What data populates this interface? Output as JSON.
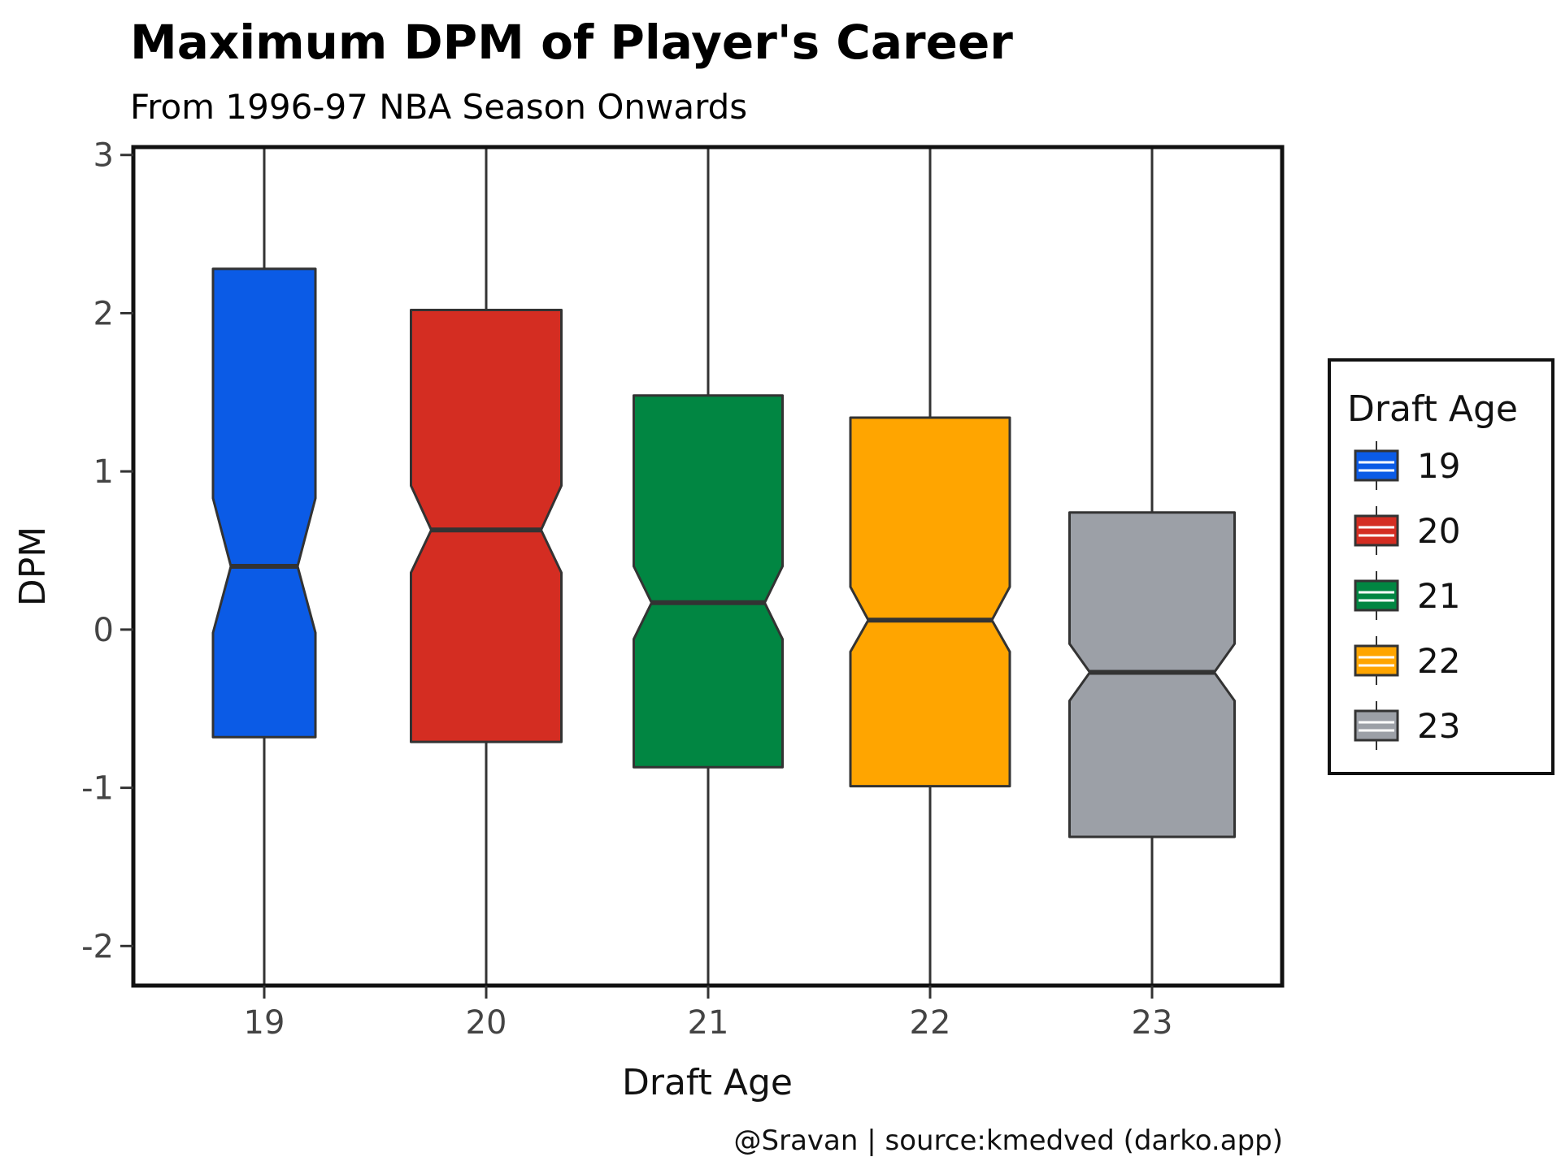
{
  "chart_data": {
    "type": "boxplot",
    "title": "Maximum DPM of Player's Career",
    "subtitle": "From 1996-97 NBA Season Onwards",
    "xlabel": "Draft Age",
    "ylabel": "DPM",
    "categories": [
      "19",
      "20",
      "21",
      "22",
      "23"
    ],
    "ylim": [
      -2.25,
      3.05
    ],
    "yticks": [
      3,
      2,
      1,
      0,
      -1,
      -2
    ],
    "ytick_labels": [
      "3",
      "2",
      "1",
      "0",
      "-1",
      "-2"
    ],
    "notched": true,
    "series": [
      {
        "category": "19",
        "whisker_low": -2.3,
        "q1": -0.68,
        "notch_low": -0.02,
        "median": 0.4,
        "notch_high": 0.83,
        "q3": 2.28,
        "whisker_high": 3.3,
        "color": "#0b5be6"
      },
      {
        "category": "20",
        "whisker_low": -2.3,
        "q1": -0.71,
        "notch_low": 0.36,
        "median": 0.63,
        "notch_high": 0.91,
        "q3": 2.02,
        "whisker_high": 3.3,
        "color": "#d42d22"
      },
      {
        "category": "21",
        "whisker_low": -2.3,
        "q1": -0.87,
        "notch_low": -0.06,
        "median": 0.17,
        "notch_high": 0.4,
        "q3": 1.48,
        "whisker_high": 3.3,
        "color": "#018642"
      },
      {
        "category": "22",
        "whisker_low": -2.3,
        "q1": -0.99,
        "notch_low": -0.14,
        "median": 0.06,
        "notch_high": 0.27,
        "q3": 1.34,
        "whisker_high": 3.3,
        "color": "#ffa500"
      },
      {
        "category": "23",
        "whisker_low": -2.3,
        "q1": -1.31,
        "notch_low": -0.45,
        "median": -0.27,
        "notch_high": -0.09,
        "q3": 0.74,
        "whisker_high": 3.3,
        "color": "#9ca0a7"
      }
    ],
    "legend": {
      "title": "Draft Age",
      "placement": "right",
      "items": [
        "19",
        "20",
        "21",
        "22",
        "23"
      ]
    },
    "grid": false
  },
  "caption": "@Sravan | source:kmedved (darko.app)"
}
